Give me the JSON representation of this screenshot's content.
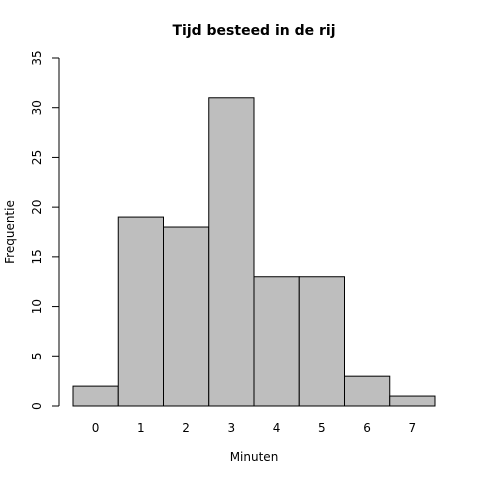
{
  "chart_data": {
    "type": "bar",
    "title": "Tijd besteed in de rij",
    "xlabel": "Minuten",
    "ylabel": "Frequentie",
    "categories": [
      "0",
      "1",
      "2",
      "3",
      "4",
      "5",
      "6",
      "7"
    ],
    "values": [
      2,
      19,
      18,
      31,
      13,
      13,
      3,
      1
    ],
    "ylim": [
      0,
      35
    ],
    "yticks": [
      0,
      5,
      10,
      15,
      20,
      25,
      30,
      35
    ],
    "grid": false,
    "legend": "none",
    "colors": {
      "bar_fill": "#bebebe",
      "bar_stroke": "#000000"
    }
  }
}
